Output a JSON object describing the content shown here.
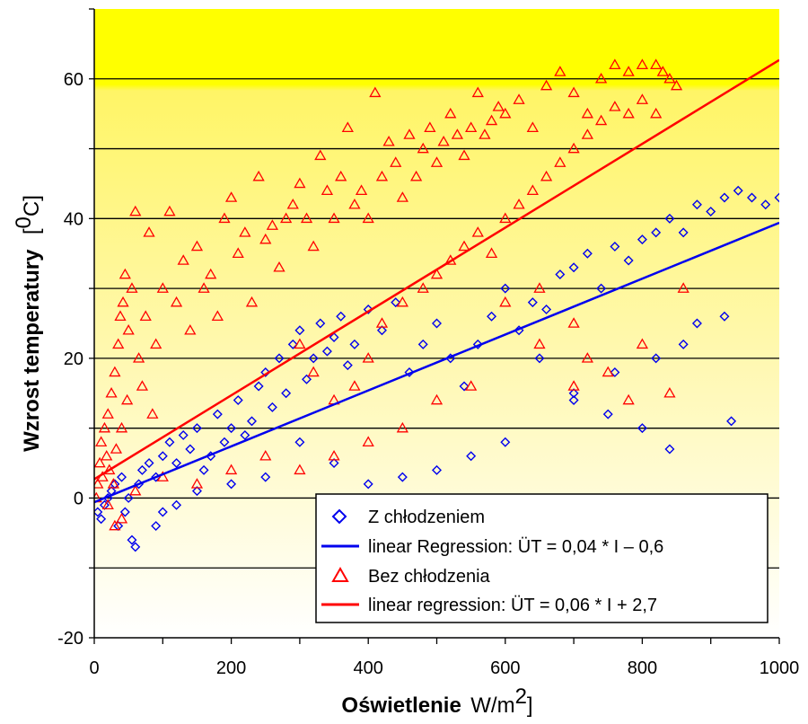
{
  "chart_data": {
    "type": "scatter",
    "title": "",
    "xlabel_bold": "Oświetlenie",
    "xlabel_unit_prefix": "W/m",
    "xlabel_unit_sup": "2",
    "xlabel_unit_suffix": "]",
    "ylabel_bold": "Wzrost temperatury",
    "ylabel_unit_prefix": "[",
    "ylabel_unit_sup": "0",
    "ylabel_unit_suffix": "C]",
    "xlim": [
      0,
      1000
    ],
    "ylim": [
      -20,
      70
    ],
    "x_ticks": [
      "0",
      "200",
      "400",
      "600",
      "800",
      "1000"
    ],
    "y_ticks": [
      "-20",
      "0",
      "20",
      "40",
      "60"
    ],
    "y_gridlines": [
      -10,
      0,
      10,
      20,
      30,
      40,
      50,
      60
    ],
    "grid": true,
    "background": {
      "gradient_top": "#ffff00",
      "gradient_bottom": "#ffffff"
    },
    "legend_position": "bottom-right",
    "series": [
      {
        "name": "Z chłodzeniem",
        "marker": "diamond",
        "color": "#0000ee",
        "points": [
          [
            5,
            -2
          ],
          [
            10,
            -3
          ],
          [
            15,
            -1
          ],
          [
            20,
            0
          ],
          [
            25,
            1
          ],
          [
            30,
            2
          ],
          [
            35,
            -4
          ],
          [
            40,
            3
          ],
          [
            45,
            -2
          ],
          [
            50,
            0
          ],
          [
            55,
            -6
          ],
          [
            60,
            -7
          ],
          [
            65,
            2
          ],
          [
            70,
            4
          ],
          [
            80,
            5
          ],
          [
            90,
            3
          ],
          [
            100,
            6
          ],
          [
            110,
            8
          ],
          [
            120,
            5
          ],
          [
            130,
            9
          ],
          [
            140,
            7
          ],
          [
            150,
            10
          ],
          [
            160,
            4
          ],
          [
            170,
            6
          ],
          [
            180,
            12
          ],
          [
            190,
            8
          ],
          [
            200,
            10
          ],
          [
            210,
            14
          ],
          [
            220,
            9
          ],
          [
            230,
            11
          ],
          [
            240,
            16
          ],
          [
            250,
            18
          ],
          [
            260,
            13
          ],
          [
            270,
            20
          ],
          [
            280,
            15
          ],
          [
            290,
            22
          ],
          [
            300,
            24
          ],
          [
            310,
            17
          ],
          [
            320,
            20
          ],
          [
            330,
            25
          ],
          [
            340,
            21
          ],
          [
            350,
            23
          ],
          [
            360,
            26
          ],
          [
            370,
            19
          ],
          [
            380,
            22
          ],
          [
            400,
            27
          ],
          [
            420,
            24
          ],
          [
            440,
            28
          ],
          [
            460,
            18
          ],
          [
            480,
            22
          ],
          [
            500,
            25
          ],
          [
            520,
            20
          ],
          [
            540,
            16
          ],
          [
            560,
            22
          ],
          [
            580,
            26
          ],
          [
            600,
            30
          ],
          [
            620,
            24
          ],
          [
            640,
            28
          ],
          [
            660,
            27
          ],
          [
            680,
            32
          ],
          [
            700,
            33
          ],
          [
            720,
            35
          ],
          [
            740,
            30
          ],
          [
            760,
            36
          ],
          [
            780,
            34
          ],
          [
            800,
            37
          ],
          [
            820,
            38
          ],
          [
            840,
            40
          ],
          [
            860,
            38
          ],
          [
            880,
            42
          ],
          [
            900,
            41
          ],
          [
            920,
            43
          ],
          [
            940,
            44
          ],
          [
            960,
            43
          ],
          [
            980,
            42
          ],
          [
            1000,
            43
          ],
          [
            650,
            20
          ],
          [
            700,
            15
          ],
          [
            750,
            12
          ],
          [
            800,
            10
          ],
          [
            840,
            7
          ],
          [
            880,
            25
          ],
          [
            920,
            26
          ],
          [
            930,
            11
          ],
          [
            860,
            22
          ],
          [
            820,
            20
          ],
          [
            760,
            18
          ],
          [
            700,
            14
          ],
          [
            600,
            8
          ],
          [
            550,
            6
          ],
          [
            500,
            4
          ],
          [
            450,
            3
          ],
          [
            400,
            2
          ],
          [
            350,
            5
          ],
          [
            300,
            8
          ],
          [
            250,
            3
          ],
          [
            200,
            2
          ],
          [
            150,
            1
          ],
          [
            120,
            -1
          ],
          [
            100,
            -2
          ],
          [
            90,
            -4
          ]
        ]
      },
      {
        "name": "Bez chłodzenia",
        "marker": "triangle",
        "color": "#ff0000",
        "points": [
          [
            3,
            0
          ],
          [
            5,
            2
          ],
          [
            8,
            5
          ],
          [
            10,
            8
          ],
          [
            12,
            3
          ],
          [
            15,
            10
          ],
          [
            18,
            6
          ],
          [
            20,
            12
          ],
          [
            22,
            4
          ],
          [
            25,
            15
          ],
          [
            28,
            2
          ],
          [
            30,
            18
          ],
          [
            32,
            7
          ],
          [
            35,
            22
          ],
          [
            38,
            26
          ],
          [
            40,
            10
          ],
          [
            42,
            28
          ],
          [
            45,
            32
          ],
          [
            48,
            14
          ],
          [
            50,
            24
          ],
          [
            55,
            30
          ],
          [
            60,
            41
          ],
          [
            65,
            20
          ],
          [
            70,
            16
          ],
          [
            75,
            26
          ],
          [
            80,
            38
          ],
          [
            85,
            12
          ],
          [
            90,
            22
          ],
          [
            100,
            30
          ],
          [
            110,
            41
          ],
          [
            120,
            28
          ],
          [
            130,
            34
          ],
          [
            140,
            24
          ],
          [
            150,
            36
          ],
          [
            160,
            30
          ],
          [
            170,
            32
          ],
          [
            180,
            26
          ],
          [
            190,
            40
          ],
          [
            200,
            43
          ],
          [
            210,
            35
          ],
          [
            220,
            38
          ],
          [
            230,
            28
          ],
          [
            240,
            46
          ],
          [
            250,
            37
          ],
          [
            260,
            39
          ],
          [
            270,
            33
          ],
          [
            280,
            40
          ],
          [
            290,
            42
          ],
          [
            300,
            45
          ],
          [
            310,
            40
          ],
          [
            320,
            36
          ],
          [
            330,
            49
          ],
          [
            340,
            44
          ],
          [
            350,
            40
          ],
          [
            360,
            46
          ],
          [
            370,
            53
          ],
          [
            380,
            42
          ],
          [
            390,
            44
          ],
          [
            400,
            40
          ],
          [
            410,
            58
          ],
          [
            420,
            46
          ],
          [
            430,
            51
          ],
          [
            440,
            48
          ],
          [
            450,
            43
          ],
          [
            460,
            52
          ],
          [
            470,
            46
          ],
          [
            480,
            50
          ],
          [
            490,
            53
          ],
          [
            500,
            48
          ],
          [
            510,
            51
          ],
          [
            520,
            55
          ],
          [
            530,
            52
          ],
          [
            540,
            49
          ],
          [
            550,
            53
          ],
          [
            560,
            58
          ],
          [
            570,
            52
          ],
          [
            580,
            54
          ],
          [
            590,
            56
          ],
          [
            600,
            55
          ],
          [
            620,
            57
          ],
          [
            640,
            53
          ],
          [
            660,
            59
          ],
          [
            680,
            61
          ],
          [
            700,
            58
          ],
          [
            720,
            55
          ],
          [
            740,
            60
          ],
          [
            760,
            62
          ],
          [
            780,
            61
          ],
          [
            800,
            62
          ],
          [
            820,
            62
          ],
          [
            830,
            61
          ],
          [
            840,
            60
          ],
          [
            850,
            59
          ],
          [
            300,
            22
          ],
          [
            320,
            18
          ],
          [
            350,
            14
          ],
          [
            380,
            16
          ],
          [
            400,
            20
          ],
          [
            420,
            25
          ],
          [
            450,
            28
          ],
          [
            480,
            30
          ],
          [
            500,
            32
          ],
          [
            520,
            34
          ],
          [
            540,
            36
          ],
          [
            560,
            38
          ],
          [
            580,
            35
          ],
          [
            600,
            40
          ],
          [
            620,
            42
          ],
          [
            640,
            44
          ],
          [
            660,
            46
          ],
          [
            680,
            48
          ],
          [
            700,
            50
          ],
          [
            720,
            52
          ],
          [
            740,
            54
          ],
          [
            760,
            56
          ],
          [
            780,
            55
          ],
          [
            800,
            57
          ],
          [
            820,
            55
          ],
          [
            600,
            28
          ],
          [
            650,
            30
          ],
          [
            700,
            25
          ],
          [
            720,
            20
          ],
          [
            750,
            18
          ],
          [
            780,
            14
          ],
          [
            800,
            22
          ],
          [
            840,
            15
          ],
          [
            860,
            30
          ],
          [
            700,
            16
          ],
          [
            650,
            22
          ],
          [
            550,
            16
          ],
          [
            500,
            14
          ],
          [
            450,
            10
          ],
          [
            400,
            8
          ],
          [
            350,
            6
          ],
          [
            300,
            4
          ],
          [
            250,
            6
          ],
          [
            200,
            4
          ],
          [
            150,
            2
          ],
          [
            100,
            3
          ],
          [
            60,
            1
          ],
          [
            40,
            -3
          ],
          [
            30,
            -4
          ],
          [
            20,
            -1
          ]
        ]
      },
      {
        "name": "linear Regression: ÜT = 0,04 * I – 0,6",
        "marker": "line",
        "color": "#0000ee",
        "slope": 0.04,
        "intercept": -0.6
      },
      {
        "name": "linear regression: ÜT = 0,06 * I + 2,7",
        "marker": "line",
        "color": "#ff0000",
        "slope": 0.06,
        "intercept": 2.7
      }
    ]
  },
  "legend": {
    "items": [
      {
        "label": "Z chłodzeniem"
      },
      {
        "label": "linear Regression: ÜT = 0,04 * I – 0,6"
      },
      {
        "label": "Bez chłodzenia"
      },
      {
        "label": "linear regression: ÜT = 0,06 * I + 2,7"
      }
    ]
  }
}
